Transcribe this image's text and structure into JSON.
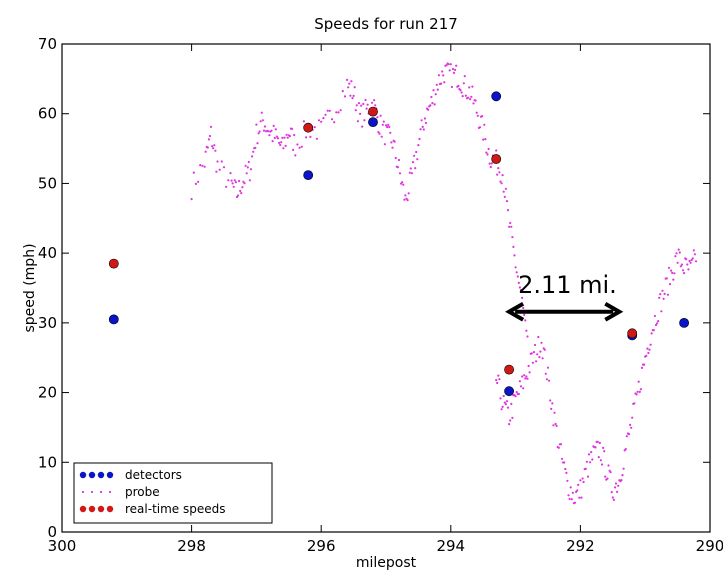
{
  "chart_data": {
    "type": "scatter",
    "title": "Speeds for run 217",
    "xlabel": "milepost",
    "ylabel": "speed (mph)",
    "xlim": [
      300,
      290
    ],
    "ylim": [
      0,
      70
    ],
    "x_ticks": [
      "300",
      "298",
      "296",
      "294",
      "292",
      "290"
    ],
    "y_ticks": [
      "0",
      "10",
      "20",
      "30",
      "40",
      "50",
      "60",
      "70"
    ],
    "x_tick_values": [
      300,
      298,
      296,
      294,
      292,
      290
    ],
    "y_tick_values": [
      0,
      10,
      20,
      30,
      40,
      50,
      60,
      70
    ],
    "grid": false,
    "legend_position": "bottom-left",
    "series": [
      {
        "name": "detectors",
        "color": "#0a14c8",
        "marker": "large-dot",
        "points": [
          [
            299.2,
            30.5
          ],
          [
            296.2,
            51.2
          ],
          [
            295.2,
            58.8
          ],
          [
            293.3,
            62.5
          ],
          [
            293.1,
            20.2
          ],
          [
            291.2,
            28.2
          ],
          [
            290.4,
            30.0
          ]
        ]
      },
      {
        "name": "probe",
        "color": "#e032e0",
        "marker": "small-dot",
        "segments": [
          [
            [
              298.0,
              49.5
            ],
            [
              297.8,
              53.0
            ],
            [
              297.7,
              57.0
            ],
            [
              297.6,
              52.5
            ],
            [
              297.4,
              50.0
            ],
            [
              297.3,
              48.5
            ],
            [
              297.2,
              50.5
            ],
            [
              297.1,
              52.0
            ],
            [
              297.0,
              57.0
            ],
            [
              296.9,
              59.0
            ],
            [
              296.8,
              57.5
            ],
            [
              296.7,
              56.5
            ],
            [
              296.6,
              55.0
            ],
            [
              296.5,
              57.5
            ],
            [
              296.4,
              55.5
            ],
            [
              296.2,
              58.0
            ],
            [
              296.0,
              57.5
            ],
            [
              295.8,
              60.5
            ],
            [
              295.6,
              64.0
            ],
            [
              295.5,
              63.0
            ],
            [
              295.4,
              59.5
            ],
            [
              295.3,
              60.5
            ],
            [
              295.2,
              61.5
            ],
            [
              295.1,
              58.5
            ],
            [
              295.0,
              57.0
            ],
            [
              294.9,
              56.0
            ],
            [
              294.8,
              52.0
            ],
            [
              294.7,
              47.5
            ],
            [
              294.6,
              51.0
            ],
            [
              294.5,
              55.5
            ],
            [
              294.4,
              59.5
            ],
            [
              294.3,
              61.5
            ],
            [
              294.2,
              64.5
            ],
            [
              294.1,
              66.0
            ],
            [
              294.0,
              65.5
            ],
            [
              293.9,
              65.5
            ],
            [
              293.8,
              64.0
            ],
            [
              293.7,
              63.0
            ],
            [
              293.6,
              60.5
            ],
            [
              293.5,
              57.5
            ],
            [
              293.4,
              54.0
            ],
            [
              293.3,
              53.0
            ],
            [
              293.2,
              51.5
            ],
            [
              293.1,
              44.0
            ],
            [
              293.0,
              38.5
            ],
            [
              292.9,
              33.0
            ],
            [
              292.8,
              25.0
            ]
          ],
          [
            [
              293.3,
              22.0
            ],
            [
              293.2,
              18.5
            ],
            [
              293.1,
              16.5
            ],
            [
              293.0,
              19.0
            ],
            [
              292.9,
              21.0
            ],
            [
              292.8,
              23.5
            ],
            [
              292.7,
              25.5
            ],
            [
              292.6,
              27.5
            ],
            [
              292.5,
              22.0
            ],
            [
              292.4,
              16.0
            ],
            [
              292.3,
              11.0
            ],
            [
              292.2,
              7.0
            ],
            [
              292.1,
              5.0
            ],
            [
              292.0,
              6.0
            ],
            [
              291.9,
              9.0
            ],
            [
              291.8,
              11.0
            ],
            [
              291.7,
              12.0
            ],
            [
              291.6,
              9.0
            ],
            [
              291.5,
              6.0
            ],
            [
              291.4,
              7.5
            ],
            [
              291.3,
              12.0
            ],
            [
              291.2,
              16.0
            ],
            [
              291.1,
              20.5
            ],
            [
              291.0,
              25.0
            ],
            [
              290.9,
              29.0
            ],
            [
              290.8,
              32.0
            ],
            [
              290.7,
              34.5
            ],
            [
              290.6,
              37.0
            ],
            [
              290.5,
              39.5
            ],
            [
              290.4,
              38.0
            ],
            [
              290.3,
              37.5
            ],
            [
              290.2,
              40.0
            ]
          ]
        ]
      },
      {
        "name": "real-time speeds",
        "color": "#d01818",
        "marker": "large-dot",
        "points": [
          [
            299.2,
            38.5
          ],
          [
            296.2,
            58.0
          ],
          [
            295.2,
            60.3
          ],
          [
            293.3,
            53.5
          ],
          [
            293.1,
            23.3
          ],
          [
            291.2,
            28.5
          ]
        ]
      }
    ],
    "annotations": [
      {
        "text": "2.11 mi.",
        "x": 292.2,
        "y": 35.4,
        "arrow_from": [
          293.1,
          31.6
        ],
        "arrow_to": [
          291.4,
          31.6
        ]
      }
    ]
  }
}
